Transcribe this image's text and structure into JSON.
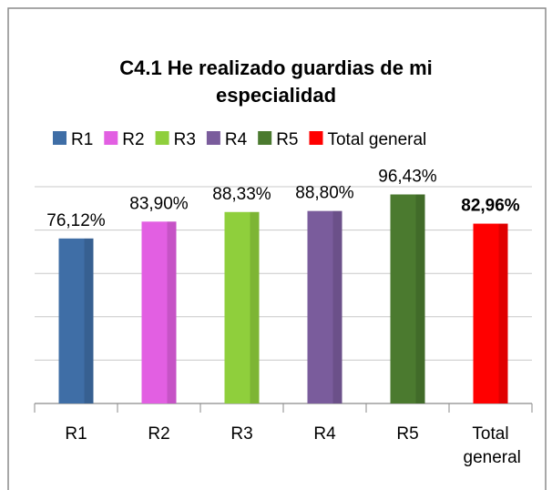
{
  "chart_data": {
    "type": "bar",
    "title": "C4.1 He realizado guardias de mi especialidad",
    "categories": [
      "R1",
      "R2",
      "R3",
      "R4",
      "R5",
      "Total general"
    ],
    "values": [
      76.12,
      83.9,
      88.33,
      88.8,
      96.43,
      82.96
    ],
    "value_labels": [
      "76,12%",
      "83,90%",
      "88,33%",
      "88,80%",
      "96,43%",
      "82,96%"
    ],
    "value_label_bold": [
      false,
      false,
      false,
      false,
      false,
      true
    ],
    "colors": [
      "#3f6ea6",
      "#e25fe2",
      "#8fcf3c",
      "#7a5c9c",
      "#4b7a2f",
      "#ff0000"
    ],
    "ylim": [
      0,
      100
    ],
    "yticks": [
      0,
      20,
      40,
      60,
      80,
      100
    ],
    "grid": true,
    "legend": "top"
  }
}
